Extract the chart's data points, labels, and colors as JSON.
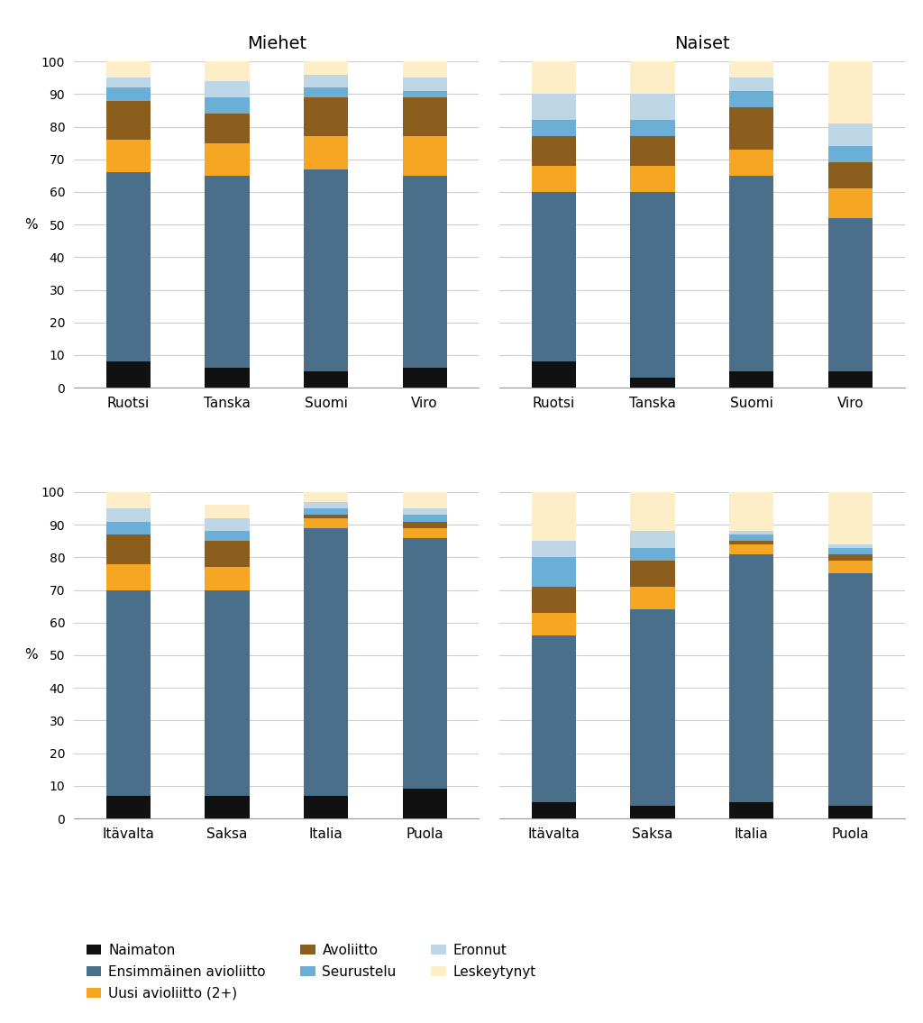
{
  "categories_top": [
    "Ruotsi",
    "Tanska",
    "Suomi",
    "Viro"
  ],
  "categories_bottom": [
    "Itävalta",
    "Saksa",
    "Italia",
    "Puola"
  ],
  "series_names": [
    "Naimaton",
    "Ensimmäinen avioliitto",
    "Uusi avioliitto (2+)",
    "Avoliitto",
    "Seurustelu",
    "Eronnut",
    "Leskeytynyt"
  ],
  "colors": [
    "#111111",
    "#4a6f8a",
    "#f5a623",
    "#8b5e1e",
    "#6baed6",
    "#bdd7e7",
    "#fdeec8"
  ],
  "top_men": [
    [
      8,
      58,
      10,
      12,
      4,
      3,
      5
    ],
    [
      6,
      59,
      10,
      9,
      5,
      5,
      6
    ],
    [
      5,
      62,
      10,
      12,
      3,
      4,
      4
    ],
    [
      6,
      59,
      12,
      12,
      2,
      4,
      5
    ]
  ],
  "top_women": [
    [
      8,
      52,
      8,
      9,
      5,
      8,
      10
    ],
    [
      3,
      57,
      8,
      9,
      5,
      8,
      10
    ],
    [
      5,
      60,
      8,
      13,
      5,
      4,
      5
    ],
    [
      5,
      47,
      9,
      8,
      5,
      7,
      19
    ]
  ],
  "bottom_men": [
    [
      7,
      63,
      8,
      9,
      4,
      4,
      5
    ],
    [
      7,
      63,
      7,
      8,
      3,
      4,
      4
    ],
    [
      7,
      82,
      3,
      1,
      2,
      2,
      3
    ],
    [
      9,
      77,
      3,
      2,
      2,
      2,
      5
    ]
  ],
  "bottom_women": [
    [
      5,
      51,
      7,
      8,
      9,
      5,
      15
    ],
    [
      4,
      60,
      7,
      8,
      4,
      5,
      12
    ],
    [
      5,
      76,
      3,
      1,
      2,
      1,
      12
    ],
    [
      4,
      71,
      4,
      2,
      2,
      1,
      16
    ]
  ],
  "title_men": "Miehet",
  "title_women": "Naiset",
  "ylabel": "%",
  "ylim": [
    0,
    100
  ],
  "yticks": [
    0,
    10,
    20,
    30,
    40,
    50,
    60,
    70,
    80,
    90,
    100
  ],
  "background_color": "#ffffff",
  "grid_color": "#cccccc",
  "legend_order": [
    0,
    1,
    2,
    3,
    4,
    5,
    6
  ]
}
